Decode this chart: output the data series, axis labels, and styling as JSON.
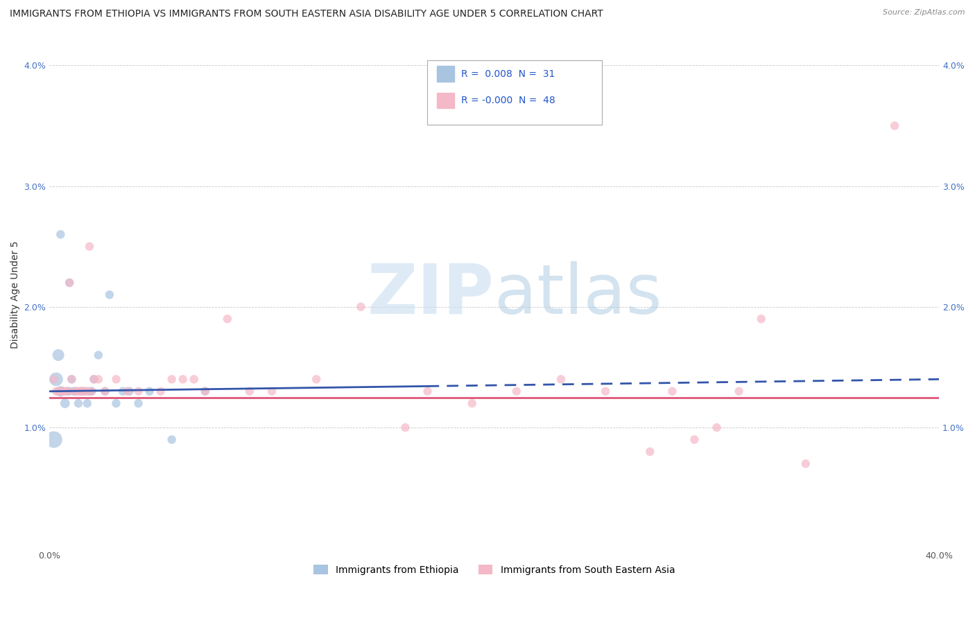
{
  "title": "IMMIGRANTS FROM ETHIOPIA VS IMMIGRANTS FROM SOUTH EASTERN ASIA DISABILITY AGE UNDER 5 CORRELATION CHART",
  "source": "Source: ZipAtlas.com",
  "ylabel": "Disability Age Under 5",
  "xlim": [
    0.0,
    0.4
  ],
  "ylim": [
    0.0,
    0.042
  ],
  "xticks": [
    0.0,
    0.1,
    0.2,
    0.3,
    0.4
  ],
  "xticklabels": [
    "0.0%",
    "",
    "",
    "",
    "40.0%"
  ],
  "yticks": [
    0.0,
    0.01,
    0.02,
    0.03,
    0.04
  ],
  "yticklabels_left": [
    "",
    "1.0%",
    "2.0%",
    "3.0%",
    "4.0%"
  ],
  "yticklabels_right": [
    "",
    "1.0%",
    "2.0%",
    "3.0%",
    "4.0%"
  ],
  "legend_series1": "Immigrants from Ethiopia",
  "legend_series2": "Immigrants from South Eastern Asia",
  "blue_color": "#a8c4e0",
  "pink_color": "#f4b8c8",
  "blue_line_color": "#3355aa",
  "pink_line_color": "#dd5577",
  "watermark_zip": "ZIP",
  "watermark_atlas": "atlas",
  "title_fontsize": 10,
  "blue_scatter_x": [
    0.002,
    0.003,
    0.004,
    0.005,
    0.005,
    0.006,
    0.007,
    0.008,
    0.009,
    0.009,
    0.01,
    0.011,
    0.012,
    0.013,
    0.014,
    0.015,
    0.016,
    0.017,
    0.018,
    0.019,
    0.02,
    0.022,
    0.025,
    0.027,
    0.03,
    0.033,
    0.036,
    0.04,
    0.045,
    0.055,
    0.07
  ],
  "blue_scatter_y": [
    0.009,
    0.014,
    0.016,
    0.026,
    0.013,
    0.013,
    0.012,
    0.013,
    0.022,
    0.013,
    0.014,
    0.013,
    0.013,
    0.012,
    0.013,
    0.013,
    0.013,
    0.012,
    0.013,
    0.013,
    0.014,
    0.016,
    0.013,
    0.021,
    0.012,
    0.013,
    0.013,
    0.012,
    0.013,
    0.009,
    0.013
  ],
  "blue_scatter_sizes": [
    300,
    200,
    150,
    80,
    120,
    80,
    100,
    80,
    80,
    80,
    80,
    80,
    80,
    80,
    80,
    80,
    80,
    80,
    80,
    80,
    80,
    80,
    80,
    80,
    80,
    80,
    80,
    80,
    80,
    80,
    80
  ],
  "pink_scatter_x": [
    0.002,
    0.003,
    0.004,
    0.005,
    0.006,
    0.007,
    0.008,
    0.009,
    0.01,
    0.011,
    0.012,
    0.013,
    0.014,
    0.015,
    0.016,
    0.017,
    0.018,
    0.019,
    0.02,
    0.022,
    0.025,
    0.03,
    0.035,
    0.04,
    0.05,
    0.055,
    0.06,
    0.065,
    0.07,
    0.08,
    0.09,
    0.1,
    0.12,
    0.14,
    0.16,
    0.17,
    0.19,
    0.21,
    0.23,
    0.25,
    0.27,
    0.28,
    0.29,
    0.3,
    0.31,
    0.32,
    0.34,
    0.38
  ],
  "pink_scatter_y": [
    0.014,
    0.013,
    0.013,
    0.013,
    0.013,
    0.013,
    0.013,
    0.022,
    0.014,
    0.013,
    0.013,
    0.013,
    0.013,
    0.013,
    0.013,
    0.013,
    0.025,
    0.013,
    0.014,
    0.014,
    0.013,
    0.014,
    0.013,
    0.013,
    0.013,
    0.014,
    0.014,
    0.014,
    0.013,
    0.019,
    0.013,
    0.013,
    0.014,
    0.02,
    0.01,
    0.013,
    0.012,
    0.013,
    0.014,
    0.013,
    0.008,
    0.013,
    0.009,
    0.01,
    0.013,
    0.019,
    0.007,
    0.035
  ],
  "pink_scatter_sizes": [
    80,
    80,
    80,
    80,
    80,
    80,
    80,
    80,
    80,
    80,
    80,
    80,
    80,
    80,
    80,
    80,
    80,
    80,
    80,
    80,
    80,
    80,
    80,
    80,
    80,
    80,
    80,
    80,
    80,
    80,
    80,
    80,
    80,
    80,
    80,
    80,
    80,
    80,
    80,
    80,
    80,
    80,
    80,
    80,
    80,
    80,
    80,
    80
  ],
  "blue_line_y_start": 0.013,
  "blue_line_y_end": 0.014,
  "blue_line_x_solid_end": 0.17,
  "pink_line_y_start": 0.0125,
  "pink_line_y_end": 0.0125
}
